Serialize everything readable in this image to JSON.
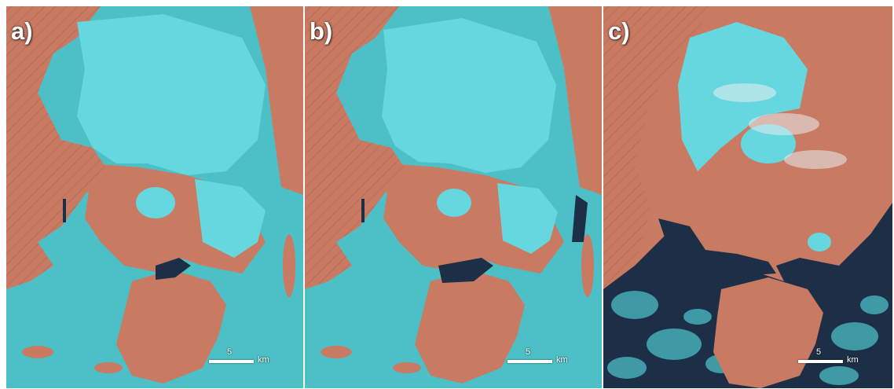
{
  "panels": [
    {
      "id": "a",
      "label": "a)",
      "scale_value": "5",
      "scale_unit": "km",
      "condition": "ice"
    },
    {
      "id": "b",
      "label": "b)",
      "scale_value": "5",
      "scale_unit": "km",
      "condition": "ice"
    },
    {
      "id": "c",
      "label": "c)",
      "scale_value": "5",
      "scale_unit": "km",
      "condition": "open-water"
    }
  ],
  "colors": {
    "land": "#c97a63",
    "land_dark": "#9d5a49",
    "snow": "#66d7df",
    "sea_ice": "#4cc0c6",
    "open_water": "#1d2e47",
    "ice_floe": "#3f9aa6"
  }
}
